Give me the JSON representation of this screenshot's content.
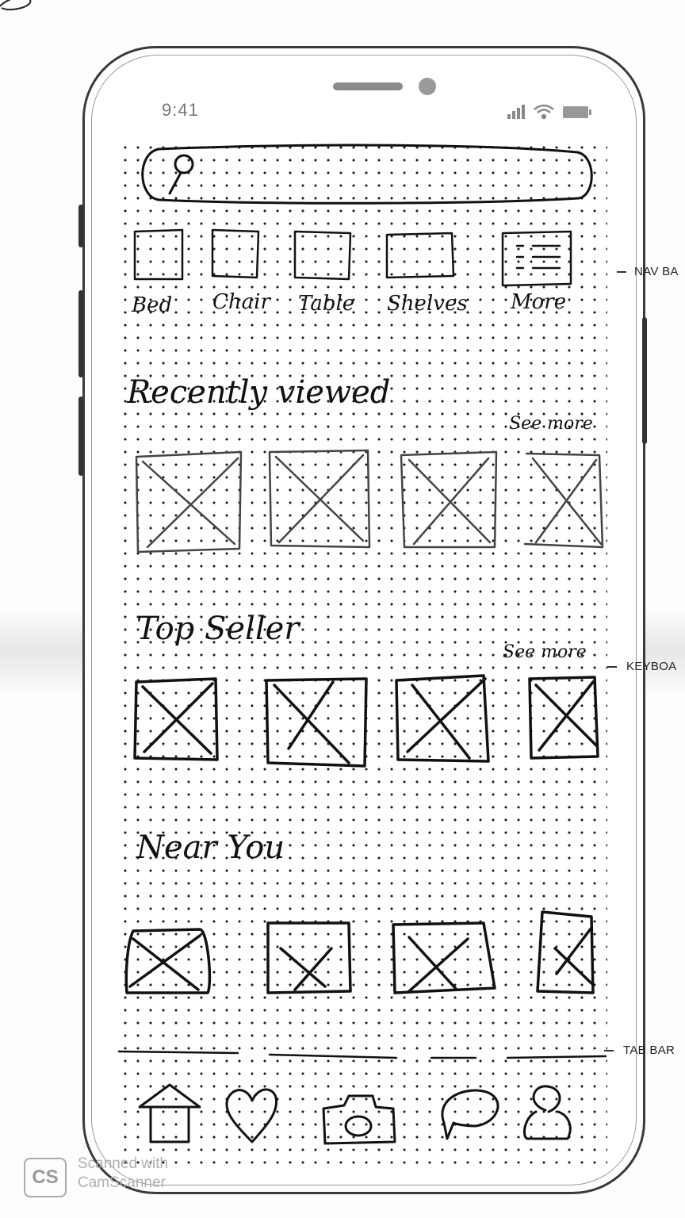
{
  "status_bar": {
    "time": "9:41"
  },
  "search": {
    "icon": "search-icon"
  },
  "categories": [
    {
      "label": "Bed"
    },
    {
      "label": "Chair"
    },
    {
      "label": "Table"
    },
    {
      "label": "Shelves"
    },
    {
      "label": "More"
    }
  ],
  "sections": {
    "recently_viewed": {
      "title": "Recently viewed",
      "see_more": "See more"
    },
    "top_seller": {
      "title": "Top Seller",
      "see_more": "See more"
    },
    "near_you": {
      "title": "Near You"
    }
  },
  "tab_bar": {
    "items": [
      {
        "icon": "home-icon"
      },
      {
        "icon": "heart-icon"
      },
      {
        "icon": "camera-icon"
      },
      {
        "icon": "chat-icon"
      },
      {
        "icon": "profile-icon"
      }
    ]
  },
  "annotations": {
    "nav_bar": "NAV BA",
    "keyboard": "KEYBOA",
    "tab_bar": "TAB BAR"
  },
  "watermark": {
    "logo": "CS",
    "line1": "Scanned with",
    "line2": "CamScanner"
  }
}
